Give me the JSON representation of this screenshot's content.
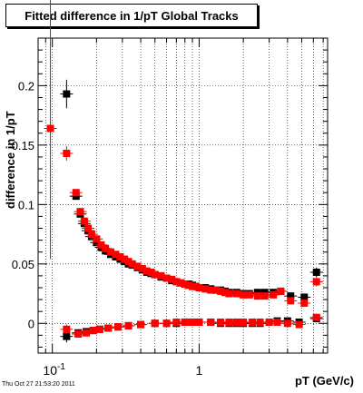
{
  "chart_data": {
    "type": "scatter",
    "title": "Fitted difference in 1/pT  Global Tracks",
    "xlabel": "pT (GeV/c)",
    "ylabel": "difference in 1/pT",
    "x_scale": "log",
    "xlim": [
      0.08,
      7.5
    ],
    "ylim": [
      -0.025,
      0.24
    ],
    "x_tick_labels": [
      {
        "value": 0.1,
        "label": "10^-1"
      },
      {
        "value": 1,
        "label": "1"
      }
    ],
    "y_ticks": [
      0,
      0.05,
      0.1,
      0.15,
      0.2
    ],
    "y_tick_labels": [
      "0",
      "0.05",
      "0.1",
      "0.15",
      "0.2"
    ],
    "grid": true,
    "series": [
      {
        "color": "#000000",
        "upper": [
          [
            0.125,
            0.193,
            0.012
          ],
          [
            0.145,
            0.107,
            0
          ],
          [
            0.155,
            0.092,
            0
          ],
          [
            0.165,
            0.084,
            0
          ],
          [
            0.175,
            0.078,
            0
          ],
          [
            0.185,
            0.073,
            0
          ],
          [
            0.2,
            0.068,
            0
          ],
          [
            0.215,
            0.064,
            0
          ],
          [
            0.23,
            0.061,
            0
          ],
          [
            0.25,
            0.058,
            0
          ],
          [
            0.27,
            0.056,
            0
          ],
          [
            0.29,
            0.054,
            0
          ],
          [
            0.31,
            0.052,
            0
          ],
          [
            0.33,
            0.05,
            0
          ],
          [
            0.35,
            0.049,
            0
          ],
          [
            0.38,
            0.047,
            0
          ],
          [
            0.41,
            0.045,
            0
          ],
          [
            0.44,
            0.043,
            0
          ],
          [
            0.47,
            0.042,
            0
          ],
          [
            0.5,
            0.041,
            0
          ],
          [
            0.55,
            0.039,
            0
          ],
          [
            0.6,
            0.038,
            0
          ],
          [
            0.65,
            0.036,
            0
          ],
          [
            0.7,
            0.035,
            0
          ],
          [
            0.75,
            0.034,
            0
          ],
          [
            0.8,
            0.033,
            0
          ],
          [
            0.85,
            0.033,
            0
          ],
          [
            0.9,
            0.032,
            0
          ],
          [
            0.95,
            0.031,
            0
          ],
          [
            1.0,
            0.03,
            0
          ],
          [
            1.1,
            0.03,
            0
          ],
          [
            1.2,
            0.029,
            0
          ],
          [
            1.3,
            0.028,
            0
          ],
          [
            1.4,
            0.028,
            0
          ],
          [
            1.5,
            0.027,
            0
          ],
          [
            1.6,
            0.026,
            0
          ],
          [
            1.8,
            0.026,
            0
          ],
          [
            2.0,
            0.025,
            0
          ],
          [
            2.2,
            0.025,
            0
          ],
          [
            2.5,
            0.026,
            0
          ],
          [
            2.8,
            0.026,
            0
          ],
          [
            3.2,
            0.026,
            0
          ],
          [
            3.6,
            0.027,
            0
          ],
          [
            4.2,
            0.023,
            0
          ],
          [
            5.2,
            0.022,
            0
          ],
          [
            6.3,
            0.043,
            0.004
          ]
        ],
        "lower": [
          [
            0.125,
            -0.011,
            0.005
          ],
          [
            0.15,
            -0.008,
            0
          ],
          [
            0.17,
            -0.007,
            0
          ],
          [
            0.19,
            -0.006,
            0
          ],
          [
            0.21,
            -0.005,
            0
          ],
          [
            0.24,
            -0.004,
            0
          ],
          [
            0.28,
            -0.003,
            0
          ],
          [
            0.33,
            -0.002,
            0
          ],
          [
            0.4,
            -0.001,
            0
          ],
          [
            0.5,
            0.0,
            0
          ],
          [
            0.6,
            0.0,
            0
          ],
          [
            0.7,
            0.0,
            0
          ],
          [
            0.8,
            0.001,
            0
          ],
          [
            0.9,
            0.001,
            0
          ],
          [
            1.0,
            0.001,
            0
          ],
          [
            1.2,
            0.001,
            0
          ],
          [
            1.4,
            0.0,
            0
          ],
          [
            1.6,
            0.0,
            0
          ],
          [
            1.8,
            0.0,
            0
          ],
          [
            2.0,
            0.0,
            0
          ],
          [
            2.3,
            0.0,
            0
          ],
          [
            2.6,
            0.0,
            0
          ],
          [
            3.0,
            0.001,
            0
          ],
          [
            3.4,
            0.002,
            0
          ],
          [
            4.0,
            0.002,
            0
          ],
          [
            4.8,
            0.001,
            0
          ],
          [
            6.3,
            0.004,
            0.003
          ]
        ]
      },
      {
        "color": "#ff0000",
        "upper": [
          [
            0.097,
            0.164,
            0.11
          ],
          [
            0.125,
            0.143,
            0.006
          ],
          [
            0.145,
            0.11,
            0
          ],
          [
            0.155,
            0.094,
            0
          ],
          [
            0.165,
            0.086,
            0
          ],
          [
            0.175,
            0.08,
            0
          ],
          [
            0.185,
            0.075,
            0
          ],
          [
            0.2,
            0.071,
            0
          ],
          [
            0.215,
            0.066,
            0
          ],
          [
            0.23,
            0.063,
            0
          ],
          [
            0.25,
            0.06,
            0
          ],
          [
            0.27,
            0.058,
            0
          ],
          [
            0.29,
            0.056,
            0
          ],
          [
            0.31,
            0.054,
            0
          ],
          [
            0.33,
            0.052,
            0
          ],
          [
            0.35,
            0.05,
            0
          ],
          [
            0.38,
            0.048,
            0
          ],
          [
            0.41,
            0.046,
            0
          ],
          [
            0.44,
            0.044,
            0
          ],
          [
            0.47,
            0.043,
            0
          ],
          [
            0.5,
            0.041,
            0
          ],
          [
            0.55,
            0.04,
            0
          ],
          [
            0.6,
            0.038,
            0
          ],
          [
            0.65,
            0.037,
            0
          ],
          [
            0.7,
            0.035,
            0
          ],
          [
            0.75,
            0.034,
            0
          ],
          [
            0.8,
            0.033,
            0
          ],
          [
            0.85,
            0.032,
            0
          ],
          [
            0.9,
            0.031,
            0
          ],
          [
            0.95,
            0.031,
            0
          ],
          [
            1.0,
            0.03,
            0
          ],
          [
            1.1,
            0.029,
            0
          ],
          [
            1.2,
            0.028,
            0
          ],
          [
            1.3,
            0.028,
            0
          ],
          [
            1.4,
            0.027,
            0
          ],
          [
            1.5,
            0.026,
            0
          ],
          [
            1.6,
            0.025,
            0
          ],
          [
            1.8,
            0.025,
            0
          ],
          [
            2.0,
            0.024,
            0
          ],
          [
            2.2,
            0.024,
            0
          ],
          [
            2.5,
            0.023,
            0
          ],
          [
            2.8,
            0.023,
            0
          ],
          [
            3.2,
            0.024,
            0
          ],
          [
            3.6,
            0.027,
            0
          ],
          [
            4.2,
            0.019,
            0
          ],
          [
            5.2,
            0.017,
            0
          ],
          [
            6.3,
            0.035,
            0.004
          ]
        ],
        "lower": [
          [
            0.125,
            -0.005,
            0.004
          ],
          [
            0.15,
            -0.009,
            0
          ],
          [
            0.17,
            -0.008,
            0
          ],
          [
            0.19,
            -0.006,
            0
          ],
          [
            0.21,
            -0.005,
            0
          ],
          [
            0.24,
            -0.004,
            0
          ],
          [
            0.28,
            -0.003,
            0
          ],
          [
            0.33,
            -0.002,
            0
          ],
          [
            0.4,
            -0.001,
            0
          ],
          [
            0.5,
            0.0,
            0
          ],
          [
            0.6,
            0.0,
            0
          ],
          [
            0.7,
            0.001,
            0
          ],
          [
            0.8,
            0.001,
            0
          ],
          [
            0.9,
            0.001,
            0
          ],
          [
            1.0,
            0.001,
            0
          ],
          [
            1.2,
            0.001,
            0
          ],
          [
            1.4,
            0.001,
            0
          ],
          [
            1.6,
            0.001,
            0
          ],
          [
            1.8,
            0.001,
            0
          ],
          [
            2.0,
            0.001,
            0
          ],
          [
            2.3,
            0.001,
            0
          ],
          [
            2.6,
            0.001,
            0
          ],
          [
            3.0,
            0.001,
            0
          ],
          [
            3.4,
            0.001,
            0
          ],
          [
            4.0,
            0.0,
            0
          ],
          [
            4.8,
            -0.001,
            0
          ],
          [
            6.3,
            0.005,
            0.003
          ]
        ]
      }
    ]
  },
  "footer": {
    "timestamp": "Thu Oct 27 21:53:20 2011"
  }
}
